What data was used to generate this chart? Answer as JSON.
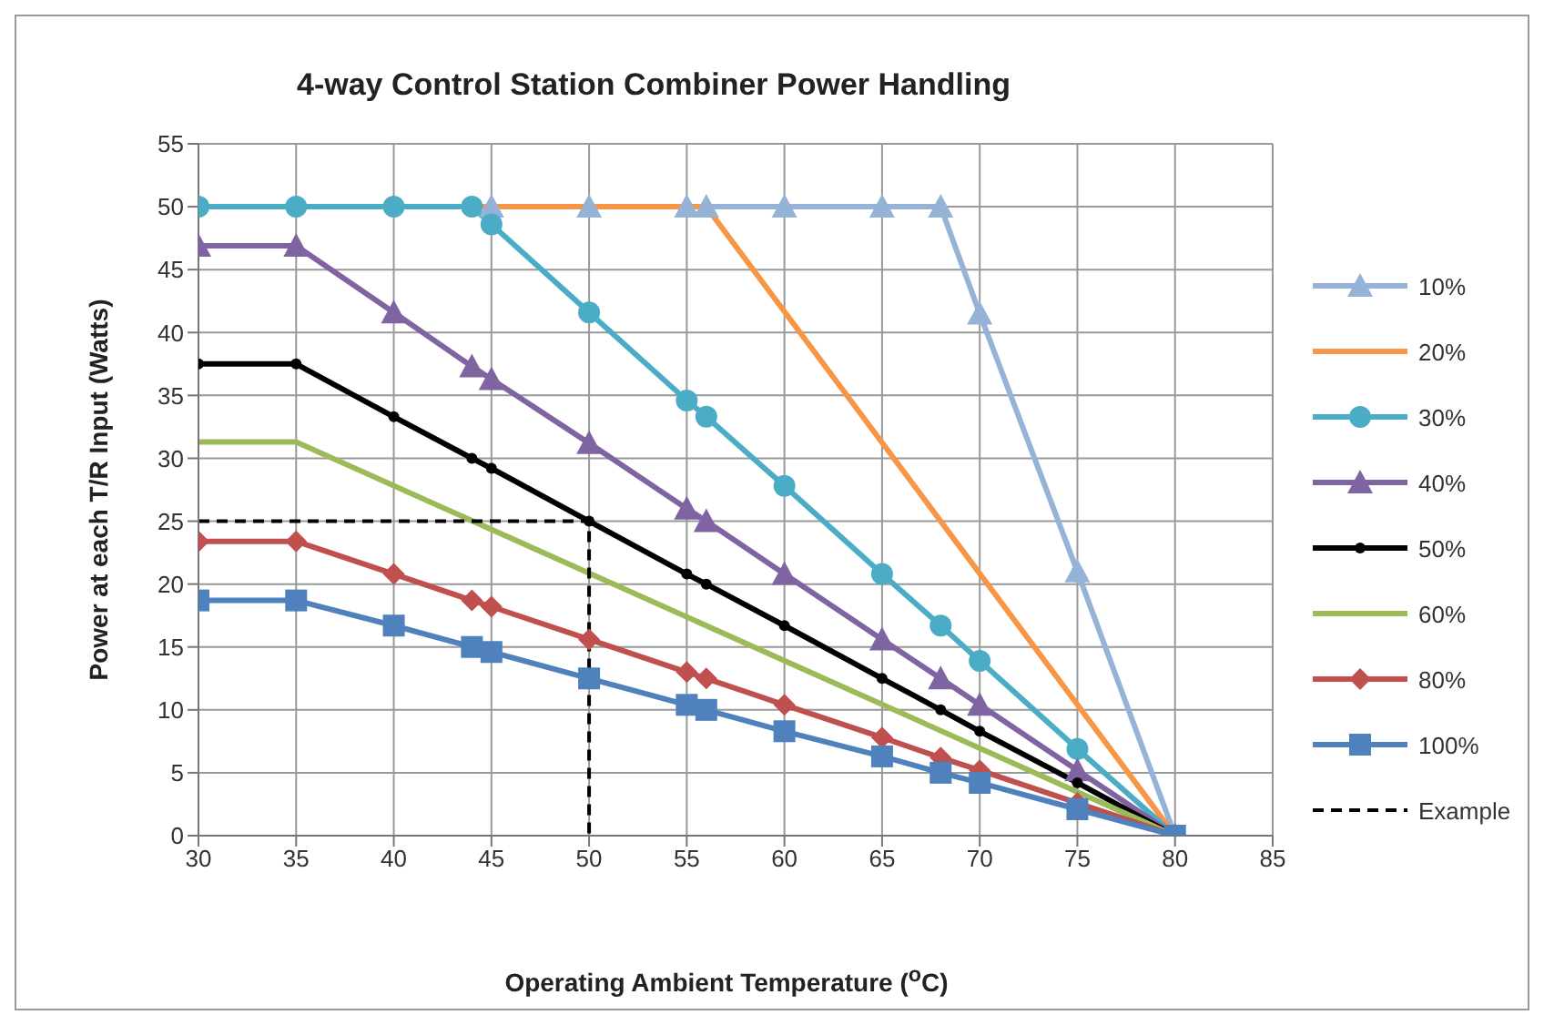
{
  "chart_data": {
    "type": "line",
    "title": "4-way Control Station Combiner Power Handling",
    "xlabel": "Operating Ambient Temperature ($^{o}$C)",
    "ylabel": "Power at each T/R Input (Watts)",
    "xlim": [
      30,
      85
    ],
    "xticks": [
      30,
      35,
      40,
      45,
      50,
      55,
      60,
      65,
      70,
      75,
      80,
      85
    ],
    "ylim": [
      0,
      55
    ],
    "yticks": [
      0,
      5,
      10,
      15,
      20,
      25,
      30,
      35,
      40,
      45,
      50,
      55
    ],
    "grid": true,
    "legend": "right",
    "line_style": "solid",
    "series": [
      {
        "name": "10%",
        "color": "#95b3d7",
        "marker": "triangle",
        "x": [
          45,
          50,
          55,
          56,
          60,
          65,
          68,
          70,
          75,
          80
        ],
        "values": [
          50,
          50,
          50,
          50,
          50,
          50,
          50,
          41.5,
          21,
          0
        ]
      },
      {
        "name": "20%",
        "color": "#f79646",
        "marker": "none",
        "x": [
          30,
          56,
          80
        ],
        "values": [
          50,
          50,
          0
        ]
      },
      {
        "name": "30%",
        "color": "#4bacc6",
        "marker": "circle",
        "x": [
          30,
          35,
          40,
          44,
          45,
          50,
          55,
          56,
          60,
          65,
          68,
          70,
          75,
          80
        ],
        "values": [
          50,
          50,
          50,
          50,
          48.6,
          41.6,
          34.6,
          33.3,
          27.8,
          20.8,
          16.7,
          13.9,
          6.9,
          0
        ]
      },
      {
        "name": "40%",
        "color": "#8064a2",
        "marker": "triangle",
        "x": [
          30,
          35,
          40,
          44,
          45,
          50,
          55,
          56,
          60,
          65,
          68,
          70,
          75,
          80
        ],
        "values": [
          46.9,
          46.9,
          41.6,
          37.3,
          36.3,
          31.2,
          26,
          25,
          20.8,
          15.6,
          12.5,
          10.4,
          5.2,
          0
        ]
      },
      {
        "name": "50%",
        "color": "#000000",
        "marker": "circle",
        "x": [
          30,
          35,
          40,
          44,
          45,
          50,
          55,
          56,
          60,
          65,
          68,
          70,
          75,
          80
        ],
        "values": [
          37.5,
          37.5,
          33.3,
          30,
          29.2,
          25,
          20.8,
          20,
          16.7,
          12.5,
          10,
          8.3,
          4.2,
          0
        ]
      },
      {
        "name": "60%",
        "color": "#9bbb59",
        "marker": "none",
        "x": [
          30,
          35,
          80
        ],
        "values": [
          31.3,
          31.3,
          0
        ]
      },
      {
        "name": "80%",
        "color": "#c0504d",
        "marker": "diamond",
        "x": [
          30,
          35,
          40,
          44,
          45,
          50,
          55,
          56,
          60,
          65,
          68,
          70,
          75,
          80
        ],
        "values": [
          23.4,
          23.4,
          20.8,
          18.7,
          18.2,
          15.6,
          13,
          12.5,
          10.4,
          7.8,
          6.2,
          5.2,
          2.6,
          0
        ]
      },
      {
        "name": "100%",
        "color": "#4f81bd",
        "marker": "square",
        "x": [
          30,
          35,
          40,
          44,
          45,
          50,
          55,
          56,
          60,
          65,
          68,
          70,
          75,
          80
        ],
        "values": [
          18.7,
          18.7,
          16.7,
          15,
          14.6,
          12.5,
          10.4,
          10,
          8.3,
          6.3,
          5,
          4.2,
          2.1,
          0
        ]
      },
      {
        "name": "Example",
        "color": "#000000",
        "marker": "none",
        "line_style": "dashed",
        "x": [
          30,
          50,
          50
        ],
        "values": [
          25,
          25,
          0
        ]
      }
    ]
  }
}
